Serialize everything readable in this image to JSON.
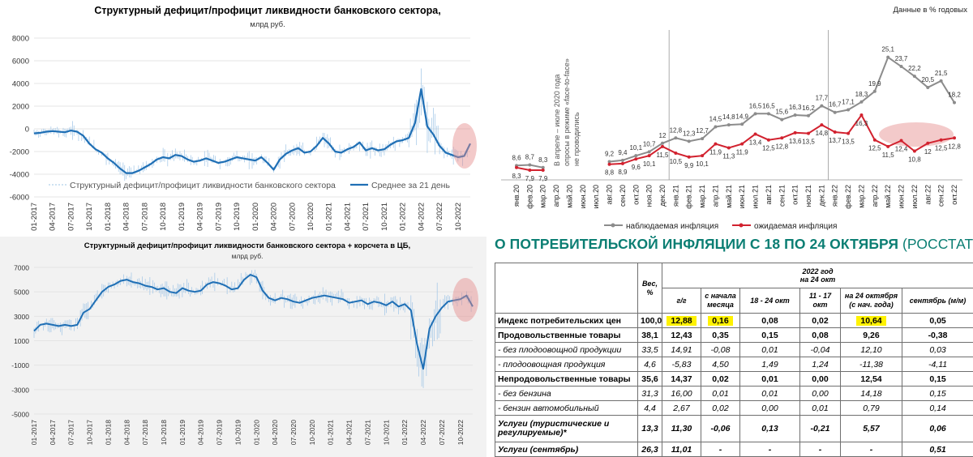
{
  "palette": {
    "liquidity_line": "#1f6fb5",
    "liquidity_spikes": "#9ec4e6",
    "highlight_circle": "#e48a8a",
    "observed": "#8c8c8c",
    "expected": "#d2222f",
    "title_teal": "#0b7e73",
    "yellow_hl": "#fff200"
  },
  "chart_data": [
    {
      "type": "line",
      "title": "Структурный дефицит/профицит ликвидности банковского сектора,",
      "subtitle": "млрд руб.",
      "ylim": [
        -6000,
        8000
      ],
      "yticks": [
        8000,
        6000,
        4000,
        2000,
        0,
        -2000,
        -4000,
        -6000
      ],
      "x_ticks": [
        "01-2017",
        "04-2017",
        "07-2017",
        "10-2017",
        "01-2018",
        "04-2018",
        "07-2018",
        "10-2018",
        "01-2019",
        "04-2019",
        "07-2019",
        "10-2019",
        "01-2020",
        "04-2020",
        "07-2020",
        "10-2020",
        "01-2021",
        "04-2021",
        "07-2021",
        "10-2021",
        "01-2022",
        "04-2022",
        "07-2022",
        "10-2022"
      ],
      "series": [
        {
          "name": "Структурный дефицит/профицит ликвидности банковского сектора",
          "style": "daily"
        },
        {
          "name": "Среднее за 21 день",
          "style": "line",
          "x": [
            0,
            1,
            2,
            3,
            4,
            5,
            6,
            7,
            8,
            9,
            10,
            11,
            12,
            13,
            14,
            15,
            16,
            17,
            18,
            19,
            20,
            21,
            22,
            23,
            24,
            25,
            26,
            27,
            28,
            29,
            30,
            31,
            32,
            33,
            34,
            35,
            36,
            37,
            38,
            39,
            40,
            41,
            42,
            43,
            44,
            45,
            46,
            47,
            48,
            49,
            50,
            51,
            52,
            53,
            54,
            55,
            56,
            57,
            58,
            59,
            60,
            61,
            62,
            63,
            64,
            65,
            66,
            67,
            68,
            69,
            70,
            71
          ],
          "values": [
            -400,
            -350,
            -250,
            -200,
            -250,
            -300,
            -150,
            -250,
            -600,
            -1300,
            -1800,
            -2100,
            -2600,
            -3000,
            -3500,
            -3900,
            -3900,
            -3700,
            -3400,
            -3100,
            -2700,
            -2500,
            -2600,
            -2300,
            -2400,
            -2700,
            -2900,
            -2800,
            -2600,
            -2800,
            -3000,
            -2900,
            -2700,
            -2500,
            -2600,
            -2700,
            -2800,
            -2500,
            -3000,
            -3600,
            -2700,
            -2200,
            -1900,
            -1700,
            -2100,
            -2000,
            -1500,
            -800,
            -1300,
            -2000,
            -2100,
            -1800,
            -1600,
            -1200,
            -1900,
            -1700,
            -1900,
            -1800,
            -1400,
            -1100,
            -1000,
            -800,
            500,
            3500,
            200,
            -500,
            -1500,
            -2100,
            -2300,
            -2500,
            -2400,
            -1300
          ]
        }
      ],
      "legend": "bottom"
    },
    {
      "type": "line",
      "title": "Структурный дефицит/профицит ликвидности банковского сектора + корсчета в ЦБ,",
      "subtitle": "млрд руб.",
      "ylim": [
        -5000,
        7000
      ],
      "yticks": [
        7000,
        5000,
        3000,
        1000,
        -1000,
        -3000,
        -5000
      ],
      "x_ticks": [
        "01-2017",
        "04-2017",
        "07-2017",
        "10-2017",
        "01-2018",
        "04-2018",
        "07-2018",
        "10-2018",
        "01-2019",
        "04-2019",
        "07-2019",
        "10-2019",
        "01-2020",
        "04-2020",
        "07-2020",
        "10-2020",
        "01-2021",
        "04-2021",
        "07-2021",
        "10-2021",
        "01-2022",
        "04-2022",
        "07-2022",
        "10-2022"
      ],
      "series": [
        {
          "name": "",
          "style": "line",
          "x": [
            0,
            1,
            2,
            3,
            4,
            5,
            6,
            7,
            8,
            9,
            10,
            11,
            12,
            13,
            14,
            15,
            16,
            17,
            18,
            19,
            20,
            21,
            22,
            23,
            24,
            25,
            26,
            27,
            28,
            29,
            30,
            31,
            32,
            33,
            34,
            35,
            36,
            37,
            38,
            39,
            40,
            41,
            42,
            43,
            44,
            45,
            46,
            47,
            48,
            49,
            50,
            51,
            52,
            53,
            54,
            55,
            56,
            57,
            58,
            59,
            60,
            61,
            62,
            63,
            64,
            65,
            66,
            67,
            68,
            69,
            70,
            71
          ],
          "values": [
            1800,
            2300,
            2400,
            2300,
            2200,
            2300,
            2200,
            2300,
            3300,
            3600,
            4300,
            5000,
            5400,
            5600,
            5900,
            6000,
            5800,
            5700,
            5500,
            5400,
            5200,
            5300,
            5000,
            4900,
            5300,
            5100,
            5000,
            5100,
            5600,
            5800,
            5700,
            5500,
            5200,
            5300,
            6000,
            6400,
            6200,
            5100,
            4500,
            4300,
            4500,
            4400,
            4200,
            4100,
            4300,
            4500,
            4600,
            4700,
            4600,
            4500,
            4400,
            4100,
            4200,
            4300,
            4000,
            4200,
            4100,
            3900,
            4200,
            3800,
            4000,
            3500,
            700,
            -1300,
            2000,
            3000,
            3700,
            4200,
            4300,
            4400,
            4700,
            3800
          ]
        }
      ]
    },
    {
      "type": "line",
      "header_note": "Данные в % годовых",
      "vertical_note": [
        "В апреле – июле 2020 года",
        "опросы в режиме «face-to-face»",
        "не проводились"
      ],
      "categories": [
        "янв.20",
        "фев.20",
        "мар.20",
        "апр.20",
        "май.20",
        "июн.20",
        "июл.20",
        "авг.20",
        "сен.20",
        "окт.20",
        "ноя.20",
        "дек.20",
        "янв.21",
        "фев.21",
        "мар.21",
        "апр.21",
        "май.21",
        "июн.21",
        "июл.21",
        "авг.21",
        "сен.21",
        "окт.21",
        "ноя.21",
        "дек.21",
        "янв.22",
        "фев.22",
        "мар.22",
        "апр.22",
        "май.22",
        "июн.22",
        "июл.22",
        "авг.22",
        "сен.22",
        "окт.22"
      ],
      "series": [
        {
          "name": "наблюдаемая инфляция",
          "color": "#8c8c8c",
          "values": [
            8.6,
            8.7,
            8.3,
            null,
            null,
            null,
            null,
            9.2,
            9.4,
            10.1,
            10.7,
            12.0,
            12.8,
            12.3,
            12.7,
            14.5,
            14.8,
            14.9,
            16.5,
            16.5,
            15.6,
            16.3,
            16.2,
            17.7,
            16.7,
            17.1,
            18.3,
            19.9,
            25.1,
            23.7,
            22.2,
            20.5,
            21.5,
            18.2
          ]
        },
        {
          "name": "ожидаемая инфляция",
          "color": "#d2222f",
          "values": [
            8.3,
            7.9,
            7.9,
            null,
            null,
            null,
            null,
            8.8,
            8.9,
            9.6,
            10.1,
            11.5,
            10.5,
            9.9,
            10.1,
            11.9,
            11.3,
            11.9,
            13.4,
            12.5,
            12.8,
            13.6,
            13.5,
            14.8,
            13.7,
            13.5,
            16.3,
            12.5,
            11.5,
            12.4,
            10.8,
            12.0,
            12.5,
            12.8
          ]
        }
      ],
      "legend": "bottom"
    }
  ],
  "table": {
    "title_main": "О ПОТРЕБИТЕЛЬСКОЙ ИНФЛЯЦИИ С 18 ПО 24 ОКТЯБРЯ",
    "title_source": "(РОССТАТ)",
    "header_group_line1": "2022 год",
    "header_group_line2": "на 24 окт",
    "headers": [
      "Вес, %",
      "г/г",
      "с начала месяца",
      "18 - 24 окт",
      "11 - 17 окт",
      "на 24 октября (с нач. года)",
      "сентябрь (м/м)"
    ],
    "rows": [
      [
        "Индекс потребительских цен",
        "100,0",
        "12,88",
        "0,16",
        "0,08",
        "0,02",
        "10,64",
        "0,05"
      ],
      [
        "Продовольственные товары",
        "38,1",
        "12,43",
        "0,35",
        "0,15",
        "0,08",
        "9,26",
        "-0,38"
      ],
      [
        "- без плодоовощной продукции",
        "33,5",
        "14,91",
        "-0,08",
        "0,01",
        "-0,04",
        "12,10",
        "0,03"
      ],
      [
        "- плодоовощная продукция",
        "4,6",
        "-5,83",
        "4,50",
        "1,49",
        "1,24",
        "-11,38",
        "-4,11"
      ],
      [
        "Непродовольственные товары",
        "35,6",
        "14,37",
        "0,02",
        "0,01",
        "0,00",
        "12,54",
        "0,15"
      ],
      [
        "- без бензина",
        "31,3",
        "16,00",
        "0,01",
        "0,01",
        "0,00",
        "14,18",
        "0,15"
      ],
      [
        "- бензин автомобильный",
        "4,4",
        "2,67",
        "0,02",
        "0,00",
        "0,01",
        "0,79",
        "0,14"
      ],
      [
        "Услуги (туристические и регулируемые)*",
        "13,3",
        "11,30",
        "-0,06",
        "0,13",
        "-0,21",
        "5,57",
        "0,06"
      ],
      [
        "Услуги (сентябрь)",
        "26,3",
        "11,01",
        "-",
        "-",
        "-",
        "-",
        "0,51"
      ]
    ]
  }
}
